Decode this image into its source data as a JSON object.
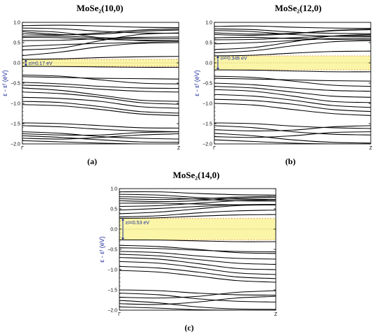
{
  "figure": {
    "colors": {
      "band": "#000000",
      "axis": "#000000",
      "gap_fill": "#fbf5a8",
      "gap_edge": "#e08a3a",
      "fermi_line": "#c8c070",
      "arrow": "#1a2a9a",
      "label": "#1a2a9a"
    }
  },
  "chart_data": [
    {
      "type": "line",
      "title": "MoSe₂(10,0)",
      "caption": "(a)",
      "ylabel": "ε - εᶠ (eV)",
      "ylim": [
        -2.0,
        1.0
      ],
      "yticks": [
        1.0,
        0.5,
        0.0,
        -0.5,
        -1.0,
        -1.5,
        -2.0
      ],
      "ytick_labels": [
        "1.0",
        "0.5",
        "0.0",
        "−0.5",
        "−1.0",
        "−1.5",
        "−2.0"
      ],
      "x": [
        0,
        1
      ],
      "xtick_labels": [
        "Γ",
        "Z"
      ],
      "gap": {
        "low": -0.085,
        "high": 0.085,
        "label": "εᵍ=0.17 eV"
      },
      "conduction_bands": [
        [
          0.92,
          0.93,
          0.91,
          0.88,
          0.87
        ],
        [
          0.86,
          0.84,
          0.78,
          0.74,
          0.73
        ],
        [
          0.8,
          0.75,
          0.62,
          0.55,
          0.53
        ],
        [
          0.77,
          0.7,
          0.71,
          0.78,
          0.81
        ],
        [
          0.72,
          0.69,
          0.74,
          0.81,
          0.84
        ],
        [
          0.66,
          0.66,
          0.62,
          0.6,
          0.6
        ],
        [
          0.63,
          0.62,
          0.58,
          0.56,
          0.55
        ],
        [
          0.55,
          0.56,
          0.6,
          0.63,
          0.64
        ],
        [
          0.41,
          0.45,
          0.48,
          0.5,
          0.5
        ],
        [
          0.32,
          0.37,
          0.55,
          0.7,
          0.74
        ],
        [
          0.18,
          0.27,
          0.4,
          0.48,
          0.5
        ],
        [
          0.085,
          0.1,
          0.13,
          0.15,
          0.16
        ]
      ],
      "valence_bands": [
        [
          -0.085,
          -0.09,
          -0.1,
          -0.11,
          -0.11
        ],
        [
          -0.3,
          -0.33,
          -0.42,
          -0.5,
          -0.52
        ],
        [
          -0.34,
          -0.36,
          -0.38,
          -0.39,
          -0.4
        ],
        [
          -0.48,
          -0.52,
          -0.58,
          -0.62,
          -0.63
        ],
        [
          -0.55,
          -0.58,
          -0.65,
          -0.7,
          -0.72
        ],
        [
          -0.62,
          -0.68,
          -0.8,
          -0.92,
          -0.95
        ],
        [
          -0.72,
          -0.76,
          -0.85,
          -0.98,
          -1.02
        ],
        [
          -0.85,
          -0.88,
          -0.95,
          -1.08,
          -1.12
        ],
        [
          -0.95,
          -0.98,
          -1.08,
          -1.2,
          -1.24
        ],
        [
          -1.03,
          -1.06,
          -1.15,
          -1.26,
          -1.3
        ],
        [
          -1.48,
          -1.5,
          -1.55,
          -1.6,
          -1.61
        ],
        [
          -1.55,
          -1.58,
          -1.64,
          -1.68,
          -1.7
        ],
        [
          -1.7,
          -1.74,
          -1.82,
          -1.86,
          -1.88
        ],
        [
          -1.75,
          -1.78,
          -1.78,
          -1.72,
          -1.7
        ],
        [
          -1.8,
          -1.84,
          -1.9,
          -1.95,
          -1.96
        ],
        [
          -1.86,
          -1.88,
          -1.84,
          -1.78,
          -1.75
        ],
        [
          -1.92,
          -1.95,
          -1.98,
          -2.0,
          -2.0
        ]
      ]
    },
    {
      "type": "line",
      "title": "MoSe₂(12,0)",
      "caption": "(b)",
      "ylabel": "ε - εᶠ (eV)",
      "ylim": [
        -2.0,
        1.0
      ],
      "yticks": [
        1.0,
        0.5,
        0.0,
        -0.5,
        -1.0,
        -1.5,
        -2.0
      ],
      "ytick_labels": [
        "1.0",
        "0.5",
        "0.0",
        "−0.5",
        "−1.0",
        "−1.5",
        "−2.0"
      ],
      "x": [
        0,
        1
      ],
      "xtick_labels": [
        "Γ",
        "Z"
      ],
      "gap": {
        "low": -0.173,
        "high": 0.173,
        "label": "εᵍ=0.346 eV"
      },
      "conduction_bands": [
        [
          0.9,
          0.91,
          0.88,
          0.86,
          0.85
        ],
        [
          0.84,
          0.82,
          0.76,
          0.73,
          0.72
        ],
        [
          0.8,
          0.77,
          0.7,
          0.66,
          0.65
        ],
        [
          0.74,
          0.71,
          0.73,
          0.79,
          0.82
        ],
        [
          0.7,
          0.68,
          0.72,
          0.8,
          0.83
        ],
        [
          0.62,
          0.63,
          0.6,
          0.58,
          0.57
        ],
        [
          0.57,
          0.58,
          0.62,
          0.66,
          0.67
        ],
        [
          0.47,
          0.5,
          0.55,
          0.6,
          0.61
        ],
        [
          0.33,
          0.38,
          0.52,
          0.66,
          0.7
        ],
        [
          0.25,
          0.3,
          0.42,
          0.52,
          0.55
        ],
        [
          0.173,
          0.19,
          0.24,
          0.28,
          0.29
        ]
      ],
      "valence_bands": [
        [
          -0.173,
          -0.18,
          -0.2,
          -0.22,
          -0.22
        ],
        [
          -0.33,
          -0.36,
          -0.45,
          -0.55,
          -0.58
        ],
        [
          -0.38,
          -0.4,
          -0.42,
          -0.44,
          -0.45
        ],
        [
          -0.5,
          -0.54,
          -0.62,
          -0.68,
          -0.7
        ],
        [
          -0.58,
          -0.62,
          -0.72,
          -0.82,
          -0.85
        ],
        [
          -0.66,
          -0.7,
          -0.82,
          -0.95,
          -0.98
        ],
        [
          -0.78,
          -0.82,
          -0.92,
          -1.05,
          -1.1
        ],
        [
          -0.9,
          -0.93,
          -1.02,
          -1.15,
          -1.2
        ],
        [
          -1.0,
          -1.04,
          -1.15,
          -1.25,
          -1.3
        ],
        [
          -1.48,
          -1.5,
          -1.56,
          -1.6,
          -1.62
        ],
        [
          -1.55,
          -1.6,
          -1.7,
          -1.76,
          -1.78
        ],
        [
          -1.65,
          -1.68,
          -1.66,
          -1.58,
          -1.55
        ],
        [
          -1.74,
          -1.8,
          -1.9,
          -1.96,
          -1.98
        ],
        [
          -1.82,
          -1.84,
          -1.8,
          -1.72,
          -1.7
        ],
        [
          -1.9,
          -1.94,
          -1.98,
          -2.0,
          -2.0
        ]
      ]
    },
    {
      "type": "line",
      "title": "MoSe₂(14,0)",
      "caption": "(c)",
      "ylabel": "ε - εᶠ (eV)",
      "ylim": [
        -2.0,
        1.0
      ],
      "yticks": [
        1.0,
        0.5,
        0.0,
        -0.5,
        -1.0,
        -1.5,
        -2.0
      ],
      "ytick_labels": [
        "1.0",
        "0.5",
        "0.0",
        "−0.5",
        "−1.0",
        "−1.5",
        "−2.0"
      ],
      "x": [
        0,
        1
      ],
      "xtick_labels": [
        "Γ",
        "Z"
      ],
      "gap": {
        "low": -0.265,
        "high": 0.265,
        "label": "εᵍ=0.53 eV"
      },
      "conduction_bands": [
        [
          0.92,
          0.92,
          0.88,
          0.85,
          0.84
        ],
        [
          0.86,
          0.84,
          0.78,
          0.74,
          0.73
        ],
        [
          0.8,
          0.78,
          0.74,
          0.7,
          0.69
        ],
        [
          0.75,
          0.73,
          0.75,
          0.79,
          0.81
        ],
        [
          0.7,
          0.68,
          0.7,
          0.76,
          0.78
        ],
        [
          0.64,
          0.64,
          0.62,
          0.6,
          0.6
        ],
        [
          0.56,
          0.58,
          0.64,
          0.7,
          0.72
        ],
        [
          0.47,
          0.51,
          0.56,
          0.6,
          0.61
        ],
        [
          0.38,
          0.42,
          0.5,
          0.58,
          0.6
        ],
        [
          0.3,
          0.33,
          0.4,
          0.45,
          0.47
        ],
        [
          0.265,
          0.28,
          0.32,
          0.35,
          0.36
        ]
      ],
      "valence_bands": [
        [
          -0.265,
          -0.27,
          -0.29,
          -0.31,
          -0.31
        ],
        [
          -0.4,
          -0.43,
          -0.5,
          -0.58,
          -0.6
        ],
        [
          -0.46,
          -0.48,
          -0.52,
          -0.55,
          -0.56
        ],
        [
          -0.55,
          -0.58,
          -0.66,
          -0.72,
          -0.74
        ],
        [
          -0.62,
          -0.66,
          -0.75,
          -0.84,
          -0.87
        ],
        [
          -0.7,
          -0.74,
          -0.85,
          -0.97,
          -1.0
        ],
        [
          -0.8,
          -0.84,
          -0.95,
          -1.08,
          -1.12
        ],
        [
          -0.92,
          -0.96,
          -1.06,
          -1.18,
          -1.22
        ],
        [
          -1.02,
          -1.06,
          -1.16,
          -1.27,
          -1.31
        ],
        [
          -1.5,
          -1.52,
          -1.58,
          -1.62,
          -1.63
        ],
        [
          -1.58,
          -1.62,
          -1.72,
          -1.78,
          -1.8
        ],
        [
          -1.68,
          -1.7,
          -1.66,
          -1.56,
          -1.52
        ],
        [
          -1.76,
          -1.82,
          -1.92,
          -1.97,
          -1.98
        ],
        [
          -1.84,
          -1.86,
          -1.8,
          -1.7,
          -1.66
        ],
        [
          -1.92,
          -1.95,
          -1.99,
          -2.0,
          -2.0
        ]
      ]
    }
  ]
}
